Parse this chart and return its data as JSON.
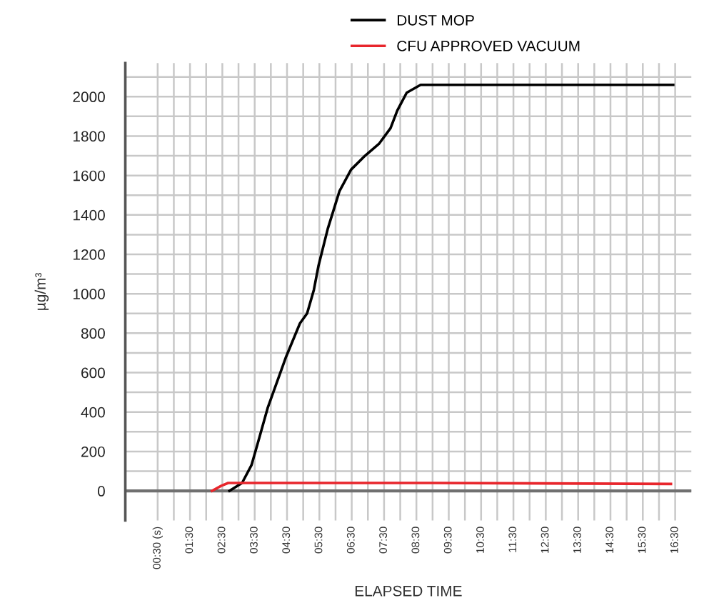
{
  "chart_data": {
    "type": "line",
    "xlabel": "ELAPSED TIME",
    "ylabel": "µg/m³",
    "series": [
      {
        "name": "DUST MOP",
        "color": "#000000",
        "x": [
          2.72,
          3.11,
          3.4,
          3.61,
          3.9,
          4.47,
          4.9,
          5.12,
          5.33,
          5.47,
          5.76,
          6.12,
          6.48,
          6.91,
          7.34,
          7.7,
          7.91,
          8.2,
          8.63,
          9.63,
          16.44
        ],
        "values": [
          0,
          40,
          130,
          250,
          420,
          680,
          850,
          900,
          1020,
          1140,
          1330,
          1520,
          1630,
          1700,
          1760,
          1840,
          1930,
          2020,
          2060,
          2060,
          2060
        ]
      },
      {
        "name": "CFU APPROVED VACUUM",
        "color": "#e8262c",
        "x": [
          2.18,
          2.46,
          2.68,
          9.0,
          16.37
        ],
        "values": [
          0,
          25,
          40,
          40,
          35
        ]
      }
    ],
    "xlim": [
      -0.5,
      17
    ],
    "ylim": [
      -150,
      2170
    ],
    "xticks": [
      {
        "value": 0.5,
        "label": "00:30 (s)"
      },
      {
        "value": 1,
        "label": null
      },
      {
        "value": 1.5,
        "label": "01:30"
      },
      {
        "value": 2,
        "label": null
      },
      {
        "value": 2.5,
        "label": "02:30"
      },
      {
        "value": 3,
        "label": null
      },
      {
        "value": 3.5,
        "label": "03:30"
      },
      {
        "value": 4,
        "label": null
      },
      {
        "value": 4.5,
        "label": "04:30"
      },
      {
        "value": 5,
        "label": null
      },
      {
        "value": 5.5,
        "label": "05:30"
      },
      {
        "value": 6,
        "label": null
      },
      {
        "value": 6.5,
        "label": "06:30"
      },
      {
        "value": 7,
        "label": null
      },
      {
        "value": 7.5,
        "label": "07:30"
      },
      {
        "value": 8,
        "label": null
      },
      {
        "value": 8.5,
        "label": "08:30"
      },
      {
        "value": 9,
        "label": null
      },
      {
        "value": 9.5,
        "label": "09:30"
      },
      {
        "value": 10,
        "label": null
      },
      {
        "value": 10.5,
        "label": "10:30"
      },
      {
        "value": 11,
        "label": null
      },
      {
        "value": 11.5,
        "label": "11:30"
      },
      {
        "value": 12,
        "label": null
      },
      {
        "value": 12.5,
        "label": "12:30"
      },
      {
        "value": 13,
        "label": null
      },
      {
        "value": 13.5,
        "label": "13:30"
      },
      {
        "value": 14,
        "label": null
      },
      {
        "value": 14.5,
        "label": "14:30"
      },
      {
        "value": 15,
        "label": null
      },
      {
        "value": 15.5,
        "label": "15:30"
      },
      {
        "value": 16,
        "label": null
      },
      {
        "value": 16.5,
        "label": "16:30"
      }
    ],
    "yticks": [
      0,
      {
        "value": 100,
        "label": null
      },
      200,
      {
        "value": 300,
        "label": null
      },
      400,
      {
        "value": 500,
        "label": null
      },
      600,
      {
        "value": 700,
        "label": null
      },
      800,
      {
        "value": 900,
        "label": null
      },
      1000,
      {
        "value": 1100,
        "label": null
      },
      1200,
      {
        "value": 1300,
        "label": null
      },
      1400,
      {
        "value": 1500,
        "label": null
      },
      1600,
      {
        "value": 1700,
        "label": null
      },
      1800,
      {
        "value": 1900,
        "label": null
      },
      2000,
      {
        "value": 2100,
        "label": null
      }
    ],
    "ref_lines": [
      {
        "axis": "y",
        "value": 0,
        "color": "#707070"
      }
    ],
    "grid": true,
    "legend": "top right",
    "marker": "none",
    "line_style": "solid"
  }
}
